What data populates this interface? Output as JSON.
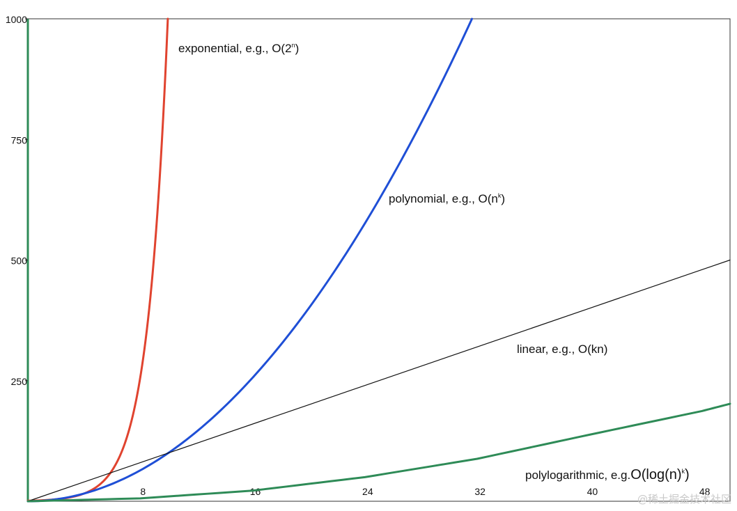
{
  "chart_data": {
    "type": "line",
    "title": "",
    "xlabel": "",
    "ylabel": "",
    "xlim": [
      0,
      50
    ],
    "ylim": [
      0,
      1000
    ],
    "x_ticks": [
      8,
      16,
      24,
      32,
      40,
      48
    ],
    "y_ticks": [
      250,
      500,
      750,
      1000
    ],
    "series": [
      {
        "name": "exponential",
        "color": "#e0432f",
        "formula": "2^n",
        "x": [
          0,
          2,
          4,
          5,
          6,
          7,
          8,
          9,
          9.966
        ],
        "y": [
          1,
          4,
          16,
          32,
          64,
          128,
          256,
          512,
          1000
        ]
      },
      {
        "name": "polynomial",
        "color": "#1f4fd6",
        "formula": "n^2",
        "x": [
          0,
          4,
          8,
          10,
          12,
          16,
          20,
          24,
          28,
          31.62
        ],
        "y": [
          0,
          16,
          64,
          100,
          144,
          256,
          400,
          576,
          784,
          1000
        ]
      },
      {
        "name": "linear",
        "color": "#111111",
        "formula": "10n",
        "x": [
          0,
          10,
          20,
          30,
          40,
          50
        ],
        "y": [
          0,
          100,
          200,
          300,
          400,
          500
        ]
      },
      {
        "name": "polylogarithmic",
        "color": "#2e8b57",
        "formula": "curve",
        "x": [
          0,
          8,
          16,
          24,
          32,
          40,
          48,
          50
        ],
        "y": [
          0,
          6,
          22,
          50,
          88,
          138,
          187,
          202
        ]
      }
    ],
    "annotations": [
      {
        "id": "exponential",
        "prefix": "exponential, e.g., O(2",
        "sup": "n",
        "suffix": ")"
      },
      {
        "id": "polynomial",
        "prefix": "polynomial, e.g., O(n",
        "sup": "k",
        "suffix": ")"
      },
      {
        "id": "linear",
        "text": "linear, e.g., O(kn)"
      },
      {
        "id": "polylogarithmic",
        "prefix": "polylogarithmic, e.g.",
        "big": "O(log(n)",
        "sup": "k",
        "suffix": ")"
      }
    ]
  },
  "watermark": "@稀土掘金技术社区"
}
